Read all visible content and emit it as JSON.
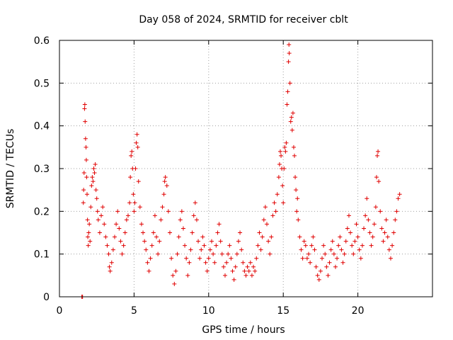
{
  "chart_data": {
    "type": "scatter",
    "title": "Day 058 of 2024, SRMTID for receiver cblt",
    "xlabel": "GPS time / hours",
    "ylabel": "SRMTID / TECUs",
    "xlim": [
      0,
      25
    ],
    "ylim": [
      0,
      0.6
    ],
    "x_ticks": [
      0,
      5,
      10,
      15,
      20
    ],
    "x_tick_labels": [
      "0",
      "5",
      "10",
      "15",
      "20"
    ],
    "y_ticks": [
      0,
      0.1,
      0.2,
      0.3,
      0.4,
      0.5,
      0.6
    ],
    "y_tick_labels": [
      "0",
      "0.1",
      "0.2",
      "0.3",
      "0.4",
      "0.5",
      "0.6"
    ],
    "grid": true,
    "marker": "plus",
    "color": "#e00000",
    "series": [
      {
        "name": "SRMTID",
        "points": [
          [
            1.5,
            0.0
          ],
          [
            1.55,
            0.0
          ],
          [
            1.6,
            0.22
          ],
          [
            1.62,
            0.25
          ],
          [
            1.65,
            0.29
          ],
          [
            1.68,
            0.44
          ],
          [
            1.7,
            0.45
          ],
          [
            1.72,
            0.41
          ],
          [
            1.75,
            0.37
          ],
          [
            1.78,
            0.35
          ],
          [
            1.8,
            0.32
          ],
          [
            1.82,
            0.28
          ],
          [
            1.85,
            0.24
          ],
          [
            1.88,
            0.18
          ],
          [
            1.9,
            0.14
          ],
          [
            1.93,
            0.12
          ],
          [
            1.96,
            0.15
          ],
          [
            2.0,
            0.17
          ],
          [
            2.05,
            0.13
          ],
          [
            2.1,
            0.21
          ],
          [
            2.15,
            0.26
          ],
          [
            2.2,
            0.28
          ],
          [
            2.25,
            0.27
          ],
          [
            2.3,
            0.3
          ],
          [
            2.35,
            0.29
          ],
          [
            2.4,
            0.31
          ],
          [
            2.45,
            0.25
          ],
          [
            2.5,
            0.23
          ],
          [
            2.55,
            0.2
          ],
          [
            2.6,
            0.18
          ],
          [
            2.7,
            0.15
          ],
          [
            2.8,
            0.19
          ],
          [
            2.9,
            0.21
          ],
          [
            3.0,
            0.17
          ],
          [
            3.1,
            0.14
          ],
          [
            3.2,
            0.12
          ],
          [
            3.3,
            0.1
          ],
          [
            3.35,
            0.07
          ],
          [
            3.4,
            0.06
          ],
          [
            3.5,
            0.08
          ],
          [
            3.6,
            0.11
          ],
          [
            3.7,
            0.14
          ],
          [
            3.8,
            0.17
          ],
          [
            3.9,
            0.2
          ],
          [
            4.0,
            0.16
          ],
          [
            4.1,
            0.13
          ],
          [
            4.2,
            0.1
          ],
          [
            4.3,
            0.12
          ],
          [
            4.4,
            0.15
          ],
          [
            4.5,
            0.18
          ],
          [
            4.6,
            0.19
          ],
          [
            4.7,
            0.22
          ],
          [
            4.75,
            0.28
          ],
          [
            4.8,
            0.33
          ],
          [
            4.85,
            0.34
          ],
          [
            4.9,
            0.3
          ],
          [
            4.95,
            0.24
          ],
          [
            5.0,
            0.2
          ],
          [
            5.05,
            0.22
          ],
          [
            5.1,
            0.3
          ],
          [
            5.15,
            0.36
          ],
          [
            5.2,
            0.38
          ],
          [
            5.25,
            0.35
          ],
          [
            5.3,
            0.27
          ],
          [
            5.4,
            0.21
          ],
          [
            5.5,
            0.17
          ],
          [
            5.6,
            0.15
          ],
          [
            5.7,
            0.13
          ],
          [
            5.8,
            0.11
          ],
          [
            5.9,
            0.08
          ],
          [
            6.0,
            0.06
          ],
          [
            6.1,
            0.09
          ],
          [
            6.2,
            0.12
          ],
          [
            6.3,
            0.15
          ],
          [
            6.4,
            0.19
          ],
          [
            6.5,
            0.14
          ],
          [
            6.6,
            0.1
          ],
          [
            6.7,
            0.13
          ],
          [
            6.8,
            0.18
          ],
          [
            6.9,
            0.21
          ],
          [
            7.0,
            0.24
          ],
          [
            7.05,
            0.27
          ],
          [
            7.1,
            0.28
          ],
          [
            7.2,
            0.26
          ],
          [
            7.3,
            0.2
          ],
          [
            7.4,
            0.15
          ],
          [
            7.5,
            0.09
          ],
          [
            7.6,
            0.05
          ],
          [
            7.7,
            0.03
          ],
          [
            7.8,
            0.06
          ],
          [
            7.9,
            0.1
          ],
          [
            8.0,
            0.14
          ],
          [
            8.1,
            0.18
          ],
          [
            8.2,
            0.2
          ],
          [
            8.3,
            0.16
          ],
          [
            8.4,
            0.12
          ],
          [
            8.5,
            0.09
          ],
          [
            8.6,
            0.05
          ],
          [
            8.7,
            0.08
          ],
          [
            8.8,
            0.11
          ],
          [
            8.9,
            0.15
          ],
          [
            9.0,
            0.19
          ],
          [
            9.1,
            0.22
          ],
          [
            9.2,
            0.18
          ],
          [
            9.3,
            0.13
          ],
          [
            9.4,
            0.09
          ],
          [
            9.5,
            0.11
          ],
          [
            9.6,
            0.14
          ],
          [
            9.7,
            0.12
          ],
          [
            9.8,
            0.08
          ],
          [
            9.9,
            0.06
          ],
          [
            10.0,
            0.09
          ],
          [
            10.1,
            0.11
          ],
          [
            10.2,
            0.13
          ],
          [
            10.3,
            0.1
          ],
          [
            10.4,
            0.08
          ],
          [
            10.5,
            0.12
          ],
          [
            10.6,
            0.15
          ],
          [
            10.7,
            0.17
          ],
          [
            10.8,
            0.13
          ],
          [
            10.9,
            0.1
          ],
          [
            11.0,
            0.07
          ],
          [
            11.1,
            0.05
          ],
          [
            11.2,
            0.08
          ],
          [
            11.3,
            0.1
          ],
          [
            11.4,
            0.12
          ],
          [
            11.5,
            0.09
          ],
          [
            11.6,
            0.06
          ],
          [
            11.7,
            0.04
          ],
          [
            11.8,
            0.07
          ],
          [
            11.9,
            0.1
          ],
          [
            12.0,
            0.13
          ],
          [
            12.1,
            0.15
          ],
          [
            12.2,
            0.11
          ],
          [
            12.3,
            0.08
          ],
          [
            12.4,
            0.06
          ],
          [
            12.5,
            0.05
          ],
          [
            12.6,
            0.07
          ],
          [
            12.7,
            0.06
          ],
          [
            12.8,
            0.08
          ],
          [
            12.9,
            0.05
          ],
          [
            13.0,
            0.07
          ],
          [
            13.1,
            0.06
          ],
          [
            13.2,
            0.09
          ],
          [
            13.3,
            0.12
          ],
          [
            13.4,
            0.15
          ],
          [
            13.5,
            0.11
          ],
          [
            13.6,
            0.14
          ],
          [
            13.7,
            0.18
          ],
          [
            13.8,
            0.21
          ],
          [
            13.9,
            0.17
          ],
          [
            14.0,
            0.13
          ],
          [
            14.1,
            0.1
          ],
          [
            14.2,
            0.14
          ],
          [
            14.3,
            0.19
          ],
          [
            14.4,
            0.22
          ],
          [
            14.5,
            0.2
          ],
          [
            14.6,
            0.24
          ],
          [
            14.7,
            0.28
          ],
          [
            14.75,
            0.31
          ],
          [
            14.8,
            0.34
          ],
          [
            14.85,
            0.33
          ],
          [
            14.9,
            0.3
          ],
          [
            14.95,
            0.26
          ],
          [
            15.0,
            0.22
          ],
          [
            15.05,
            0.3
          ],
          [
            15.1,
            0.35
          ],
          [
            15.15,
            0.34
          ],
          [
            15.2,
            0.36
          ],
          [
            15.25,
            0.45
          ],
          [
            15.3,
            0.48
          ],
          [
            15.35,
            0.55
          ],
          [
            15.38,
            0.59
          ],
          [
            15.4,
            0.57
          ],
          [
            15.45,
            0.5
          ],
          [
            15.5,
            0.41
          ],
          [
            15.55,
            0.42
          ],
          [
            15.6,
            0.39
          ],
          [
            15.65,
            0.43
          ],
          [
            15.7,
            0.35
          ],
          [
            15.75,
            0.33
          ],
          [
            15.8,
            0.28
          ],
          [
            15.85,
            0.25
          ],
          [
            15.9,
            0.2
          ],
          [
            15.95,
            0.23
          ],
          [
            16.0,
            0.18
          ],
          [
            16.1,
            0.14
          ],
          [
            16.2,
            0.11
          ],
          [
            16.3,
            0.09
          ],
          [
            16.4,
            0.13
          ],
          [
            16.5,
            0.12
          ],
          [
            16.6,
            0.09
          ],
          [
            16.7,
            0.1
          ],
          [
            16.8,
            0.08
          ],
          [
            16.9,
            0.12
          ],
          [
            17.0,
            0.14
          ],
          [
            17.1,
            0.11
          ],
          [
            17.2,
            0.07
          ],
          [
            17.3,
            0.05
          ],
          [
            17.4,
            0.04
          ],
          [
            17.5,
            0.06
          ],
          [
            17.6,
            0.09
          ],
          [
            17.7,
            0.12
          ],
          [
            17.8,
            0.1
          ],
          [
            17.9,
            0.07
          ],
          [
            18.0,
            0.05
          ],
          [
            18.1,
            0.08
          ],
          [
            18.2,
            0.11
          ],
          [
            18.3,
            0.13
          ],
          [
            18.4,
            0.1
          ],
          [
            18.5,
            0.07
          ],
          [
            18.6,
            0.09
          ],
          [
            18.7,
            0.12
          ],
          [
            18.8,
            0.14
          ],
          [
            18.9,
            0.11
          ],
          [
            19.0,
            0.08
          ],
          [
            19.1,
            0.1
          ],
          [
            19.2,
            0.13
          ],
          [
            19.3,
            0.16
          ],
          [
            19.4,
            0.19
          ],
          [
            19.5,
            0.15
          ],
          [
            19.6,
            0.12
          ],
          [
            19.7,
            0.1
          ],
          [
            19.8,
            0.13
          ],
          [
            19.9,
            0.17
          ],
          [
            20.0,
            0.14
          ],
          [
            20.1,
            0.11
          ],
          [
            20.2,
            0.09
          ],
          [
            20.3,
            0.12
          ],
          [
            20.4,
            0.16
          ],
          [
            20.5,
            0.19
          ],
          [
            20.6,
            0.23
          ],
          [
            20.7,
            0.18
          ],
          [
            20.8,
            0.15
          ],
          [
            20.9,
            0.12
          ],
          [
            21.0,
            0.14
          ],
          [
            21.1,
            0.17
          ],
          [
            21.2,
            0.21
          ],
          [
            21.25,
            0.28
          ],
          [
            21.3,
            0.33
          ],
          [
            21.35,
            0.34
          ],
          [
            21.4,
            0.27
          ],
          [
            21.5,
            0.2
          ],
          [
            21.6,
            0.16
          ],
          [
            21.7,
            0.13
          ],
          [
            21.8,
            0.15
          ],
          [
            21.9,
            0.18
          ],
          [
            22.0,
            0.14
          ],
          [
            22.1,
            0.11
          ],
          [
            22.2,
            0.09
          ],
          [
            22.3,
            0.12
          ],
          [
            22.4,
            0.15
          ],
          [
            22.5,
            0.18
          ],
          [
            22.6,
            0.2
          ],
          [
            22.7,
            0.23
          ],
          [
            22.8,
            0.24
          ]
        ]
      }
    ]
  }
}
